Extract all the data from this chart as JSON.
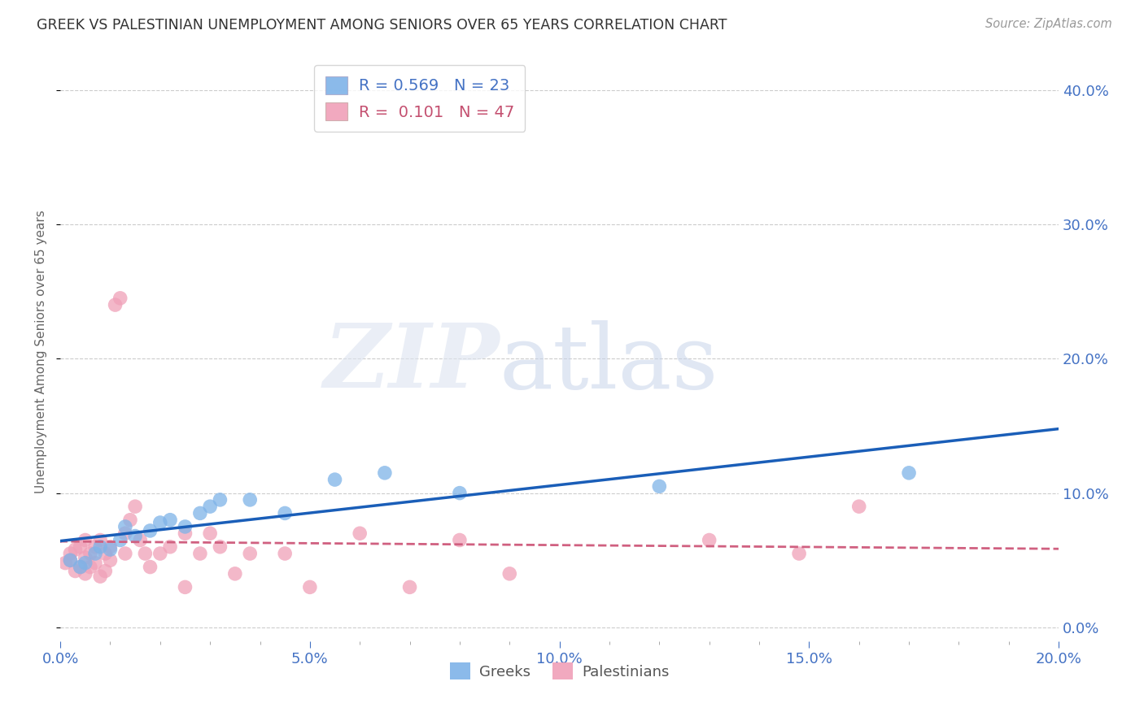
{
  "title": "GREEK VS PALESTINIAN UNEMPLOYMENT AMONG SENIORS OVER 65 YEARS CORRELATION CHART",
  "source": "Source: ZipAtlas.com",
  "ylabel": "Unemployment Among Seniors over 65 years",
  "xlim": [
    0.0,
    0.2
  ],
  "ylim": [
    -0.01,
    0.42
  ],
  "xticks": [
    0.0,
    0.05,
    0.1,
    0.15,
    0.2
  ],
  "yticks": [
    0.0,
    0.1,
    0.2,
    0.3,
    0.4
  ],
  "greek_color": "#7eb3e8",
  "palestinian_color": "#f0a0b8",
  "greek_line_color": "#1a5eb8",
  "palestinian_line_color": "#d06080",
  "greek_R": "0.569",
  "greek_N": "23",
  "palestinian_R": "0.101",
  "palestinian_N": "47",
  "background_color": "#ffffff",
  "greeks_x": [
    0.002,
    0.004,
    0.005,
    0.007,
    0.008,
    0.01,
    0.012,
    0.013,
    0.015,
    0.018,
    0.02,
    0.022,
    0.025,
    0.028,
    0.03,
    0.032,
    0.038,
    0.045,
    0.055,
    0.065,
    0.08,
    0.12,
    0.17
  ],
  "greeks_y": [
    0.05,
    0.045,
    0.048,
    0.055,
    0.06,
    0.058,
    0.065,
    0.075,
    0.068,
    0.072,
    0.078,
    0.08,
    0.075,
    0.085,
    0.09,
    0.095,
    0.095,
    0.085,
    0.11,
    0.115,
    0.1,
    0.105,
    0.115
  ],
  "palestinians_x": [
    0.001,
    0.002,
    0.002,
    0.003,
    0.003,
    0.004,
    0.004,
    0.005,
    0.005,
    0.005,
    0.006,
    0.006,
    0.007,
    0.007,
    0.008,
    0.008,
    0.009,
    0.009,
    0.01,
    0.01,
    0.011,
    0.012,
    0.013,
    0.013,
    0.014,
    0.015,
    0.016,
    0.017,
    0.018,
    0.02,
    0.022,
    0.025,
    0.025,
    0.028,
    0.03,
    0.032,
    0.035,
    0.038,
    0.045,
    0.05,
    0.06,
    0.07,
    0.08,
    0.09,
    0.13,
    0.148,
    0.16
  ],
  "palestinians_y": [
    0.048,
    0.05,
    0.055,
    0.042,
    0.058,
    0.045,
    0.06,
    0.04,
    0.052,
    0.065,
    0.045,
    0.055,
    0.048,
    0.06,
    0.038,
    0.065,
    0.042,
    0.055,
    0.05,
    0.06,
    0.24,
    0.245,
    0.055,
    0.07,
    0.08,
    0.09,
    0.065,
    0.055,
    0.045,
    0.055,
    0.06,
    0.03,
    0.07,
    0.055,
    0.07,
    0.06,
    0.04,
    0.055,
    0.055,
    0.03,
    0.07,
    0.03,
    0.065,
    0.04,
    0.065,
    0.055,
    0.09
  ]
}
